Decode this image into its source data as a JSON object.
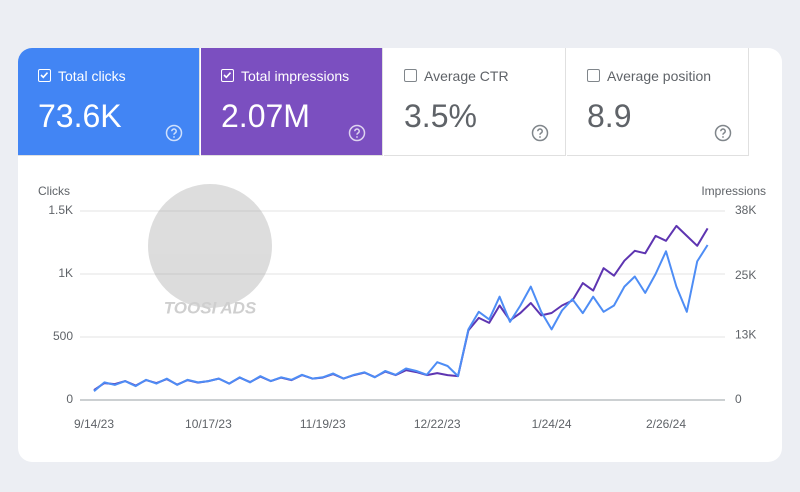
{
  "cards": [
    {
      "title": "Total clicks",
      "value": "73.6K",
      "checked": true,
      "color": "#4285f4"
    },
    {
      "title": "Total impressions",
      "value": "2.07M",
      "checked": true,
      "color": "#7b4fc0"
    },
    {
      "title": "Average CTR",
      "value": "3.5%",
      "checked": false,
      "color": "#ffffff"
    },
    {
      "title": "Average position",
      "value": "8.9",
      "checked": false,
      "color": "#ffffff"
    }
  ],
  "watermark": "TOOSI ADS",
  "chart_data": {
    "type": "line",
    "y_label": "Clicks",
    "y2_label": "Impressions",
    "categories": [
      "9/14/23",
      null,
      null,
      null,
      null,
      null,
      null,
      null,
      null,
      null,
      null,
      "10/17/23",
      null,
      null,
      null,
      null,
      null,
      null,
      null,
      null,
      null,
      null,
      "11/19/23",
      null,
      null,
      null,
      null,
      null,
      null,
      null,
      null,
      null,
      null,
      "12/22/23",
      null,
      null,
      null,
      null,
      null,
      null,
      null,
      null,
      null,
      null,
      "1/24/24",
      null,
      null,
      null,
      null,
      null,
      null,
      null,
      null,
      null,
      null,
      "2/26/24",
      null,
      null,
      null,
      null
    ],
    "series": [
      {
        "name": "Clicks",
        "color": "#4e8df5",
        "values": [
          70,
          140,
          120,
          150,
          110,
          160,
          130,
          170,
          120,
          160,
          140,
          150,
          170,
          130,
          180,
          140,
          190,
          150,
          180,
          160,
          200,
          170,
          180,
          210,
          170,
          200,
          220,
          180,
          230,
          200,
          250,
          230,
          200,
          300,
          270,
          190,
          560,
          700,
          640,
          820,
          620,
          750,
          900,
          700,
          560,
          710,
          800,
          690,
          820,
          700,
          750,
          900,
          980,
          850,
          1000,
          1180,
          900,
          700,
          1100,
          1230
        ]
      },
      {
        "name": "Impressions",
        "color": "#5e35b1",
        "axis": "y2",
        "values": [
          2000,
          3400,
          3200,
          3800,
          2900,
          4000,
          3400,
          4200,
          3100,
          4000,
          3500,
          3800,
          4300,
          3300,
          4500,
          3600,
          4700,
          3800,
          4500,
          4000,
          5000,
          4300,
          4500,
          5200,
          4300,
          5000,
          5500,
          4600,
          5700,
          5000,
          6000,
          5600,
          5000,
          5400,
          5000,
          4800,
          14000,
          16500,
          15500,
          19000,
          16000,
          17500,
          19500,
          17000,
          17500,
          19000,
          20000,
          23500,
          22000,
          26500,
          25000,
          28000,
          30000,
          29500,
          33000,
          32000,
          35000,
          33000,
          31000,
          34500
        ]
      }
    ],
    "ylim": [
      0,
      1500
    ],
    "yticks": [
      0,
      500,
      {
        "value": 1000,
        "label": "1K"
      },
      {
        "value": 1500,
        "label": "1.5K"
      }
    ],
    "y2lim": [
      0,
      38000
    ],
    "y2ticks": [
      0,
      {
        "value": 13000,
        "label": "13K"
      },
      {
        "value": 25000,
        "label": "25K"
      },
      {
        "value": 38000,
        "label": "38K"
      }
    ],
    "grid": true
  }
}
